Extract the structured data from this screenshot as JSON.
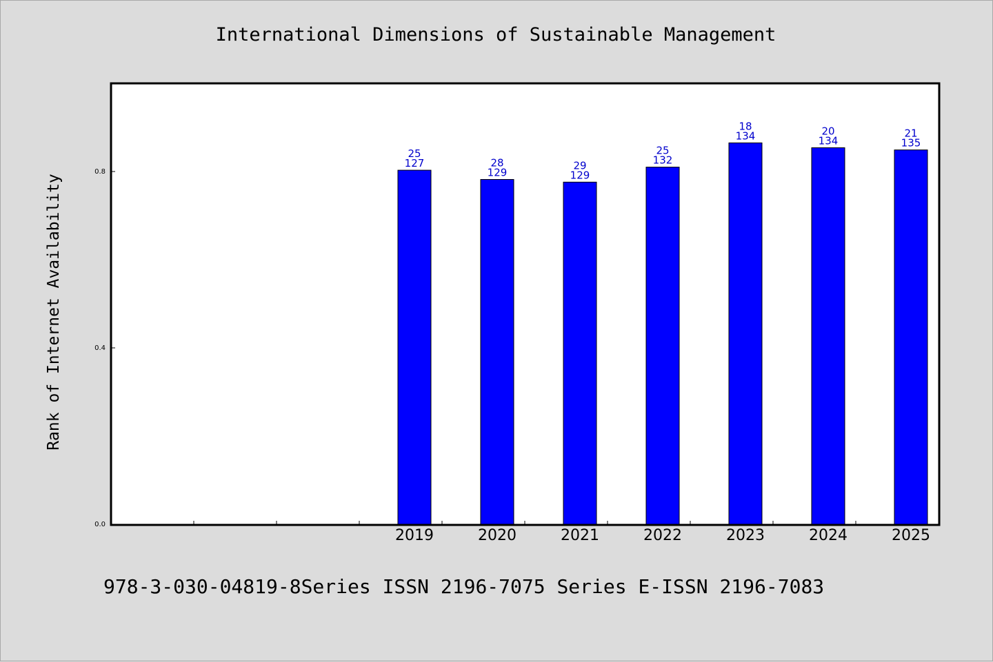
{
  "chart_data": {
    "type": "bar",
    "title": "International Dimensions of Sustainable Management",
    "ylabel": "Rank of Internet Availability",
    "xlabel": "",
    "categories": [
      "",
      "",
      "",
      "2019",
      "2020",
      "2021",
      "2022",
      "2023",
      "2024",
      "2025"
    ],
    "values": [
      null,
      null,
      null,
      0.803,
      0.782,
      0.776,
      0.81,
      0.865,
      0.854,
      0.849
    ],
    "data_labels": [
      null,
      null,
      null,
      [
        "25",
        "127"
      ],
      [
        "28",
        "129"
      ],
      [
        "29",
        "129"
      ],
      [
        "25",
        "132"
      ],
      [
        "18",
        "134"
      ],
      [
        "20",
        "134"
      ],
      [
        "21",
        "135"
      ]
    ],
    "y_ticks": [
      "0.0",
      "0.4",
      "0.8"
    ],
    "y_tick_values": [
      0,
      0.4,
      0.8
    ],
    "ylim": [
      0,
      1.0
    ],
    "grid": false,
    "bar_color": "#0000ff",
    "label_color": "#0000cc"
  },
  "footer": "978-3-030-04819-8Series ISSN 2196-7075 Series E-ISSN 2196-7083"
}
